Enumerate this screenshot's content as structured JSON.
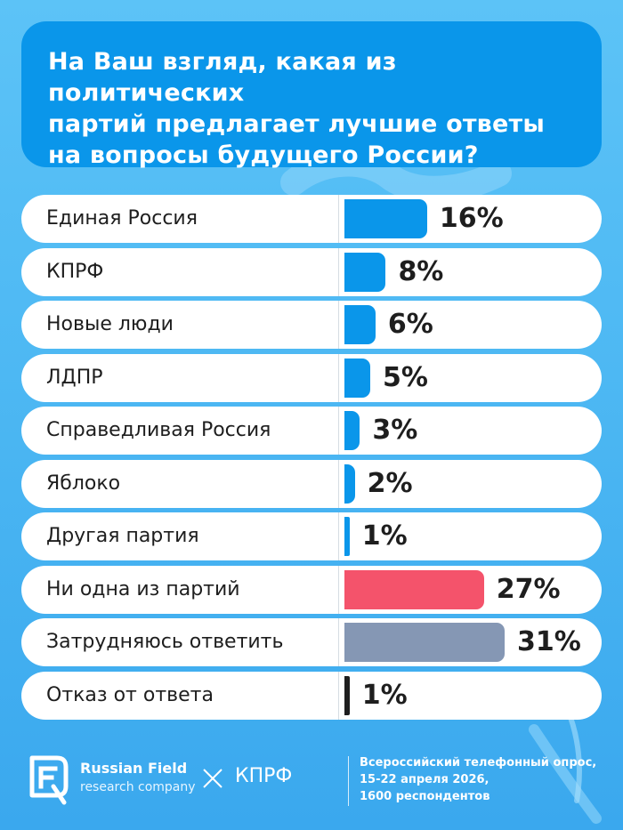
{
  "header": {
    "title_lines": [
      "На Ваш взгляд, какая из политических",
      "партий предлагает лучшие ответы",
      "на вопросы будущего России?"
    ]
  },
  "chart_data": {
    "type": "bar",
    "orientation": "horizontal",
    "title": "На Ваш взгляд, какая из политических партий предлагает лучшие ответы на вопросы будущего России?",
    "categories": [
      "Единая Россия",
      "КПРФ",
      "Новые люди",
      "ЛДПР",
      "Справедливая Россия",
      "Яблоко",
      "Другая партия",
      "Ни одна из партий",
      "Затрудняюсь ответить",
      "Отказ от ответа"
    ],
    "values": [
      16,
      8,
      6,
      5,
      3,
      2,
      1,
      27,
      31,
      1
    ],
    "value_labels": [
      "16%",
      "8%",
      "6%",
      "5%",
      "3%",
      "2%",
      "1%",
      "27%",
      "31%",
      "1%"
    ],
    "bar_colors": [
      "#0a96ea",
      "#0a96ea",
      "#0a96ea",
      "#0a96ea",
      "#0a96ea",
      "#0a96ea",
      "#0a96ea",
      "#f4536b",
      "#8597b4",
      "#1e1e1e"
    ],
    "unit": "%",
    "xlim": [
      0,
      31
    ]
  },
  "footer": {
    "brand_name": "Russian Field",
    "brand_sub": "research company",
    "partner": "КПРФ",
    "note_lines": [
      "Всероссийский телефонный опрос,",
      "15-22 апреля 2026,",
      "1600 респондентов"
    ]
  },
  "colors": {
    "background": "#4db8f3",
    "header": "#0a96ea",
    "party_bar": "#0a96ea",
    "none_bar": "#f4536b",
    "undecided_bar": "#8597b4",
    "text": "#1e1e1e"
  }
}
